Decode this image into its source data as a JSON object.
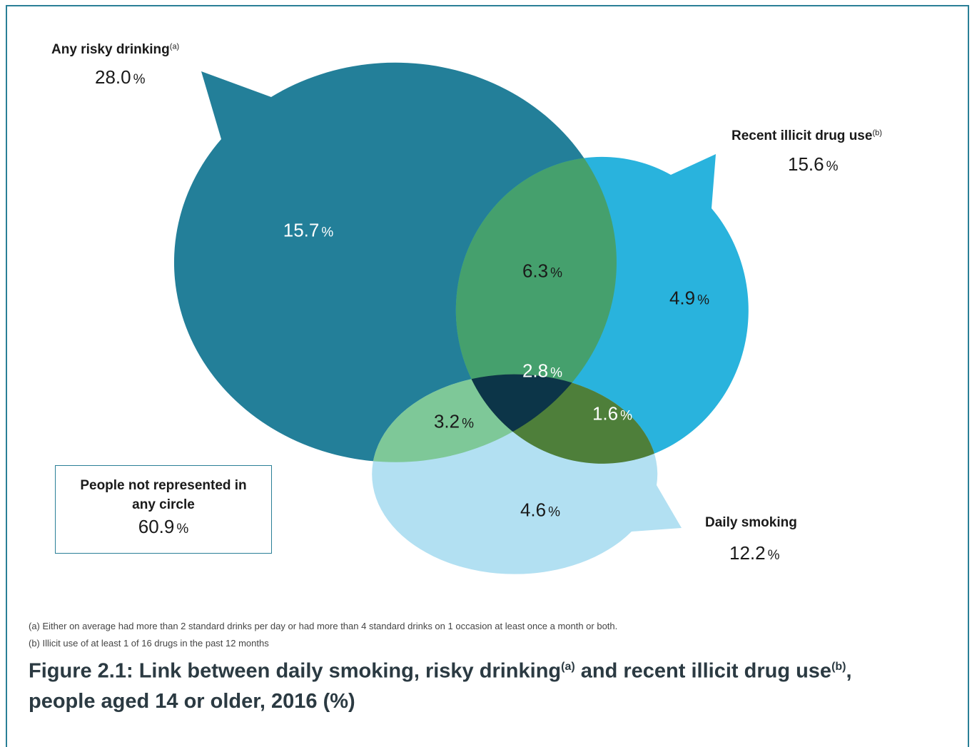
{
  "drinking": {
    "title": "Any risky drinking",
    "sup": "(a)",
    "value": "28.0",
    "unit": "%",
    "color": "#237f99"
  },
  "illicit": {
    "title": "Recent illicit drug use",
    "sup": "(b)",
    "value": "15.6",
    "unit": "%",
    "color": "#29b3dd"
  },
  "smoking": {
    "title": "Daily smoking",
    "value": "12.2",
    "unit": "%",
    "color": "#b2e0f2"
  },
  "regions": {
    "drinking_only": {
      "value": "15.7",
      "unit": "%",
      "color": "#237f99"
    },
    "illicit_only": {
      "value": "4.9",
      "unit": "%",
      "color": "#29b3dd"
    },
    "smoking_only": {
      "value": "4.6",
      "unit": "%",
      "color": "#b2e0f2"
    },
    "drinking_illicit": {
      "value": "6.3",
      "unit": "%",
      "color": "#45a06d"
    },
    "drinking_smoking": {
      "value": "3.2",
      "unit": "%",
      "color": "#7ec898"
    },
    "illicit_smoking": {
      "value": "1.6",
      "unit": "%",
      "color": "#4e7f3a"
    },
    "all_three": {
      "value": "2.8",
      "unit": "%",
      "color": "#0c3548"
    }
  },
  "none_box": {
    "line1": "People not represented in",
    "line2": "any circle",
    "value": "60.9",
    "unit": "%"
  },
  "notes": {
    "a": "(a)  Either on average had more than 2 standard drinks per day or had more than 4 standard drinks on 1 occasion at least once a month or both.",
    "b": "(b)  Illicit use of at least 1 of 16 drugs in the past 12 months"
  },
  "caption": {
    "part1": "Figure 2.1: Link between daily smoking, risky drinking",
    "sup1": "(a)",
    "part2": " and recent illicit drug use",
    "sup2": "(b)",
    "part3": ",",
    "line2": "people aged 14 or older, 2016 (%)"
  }
}
